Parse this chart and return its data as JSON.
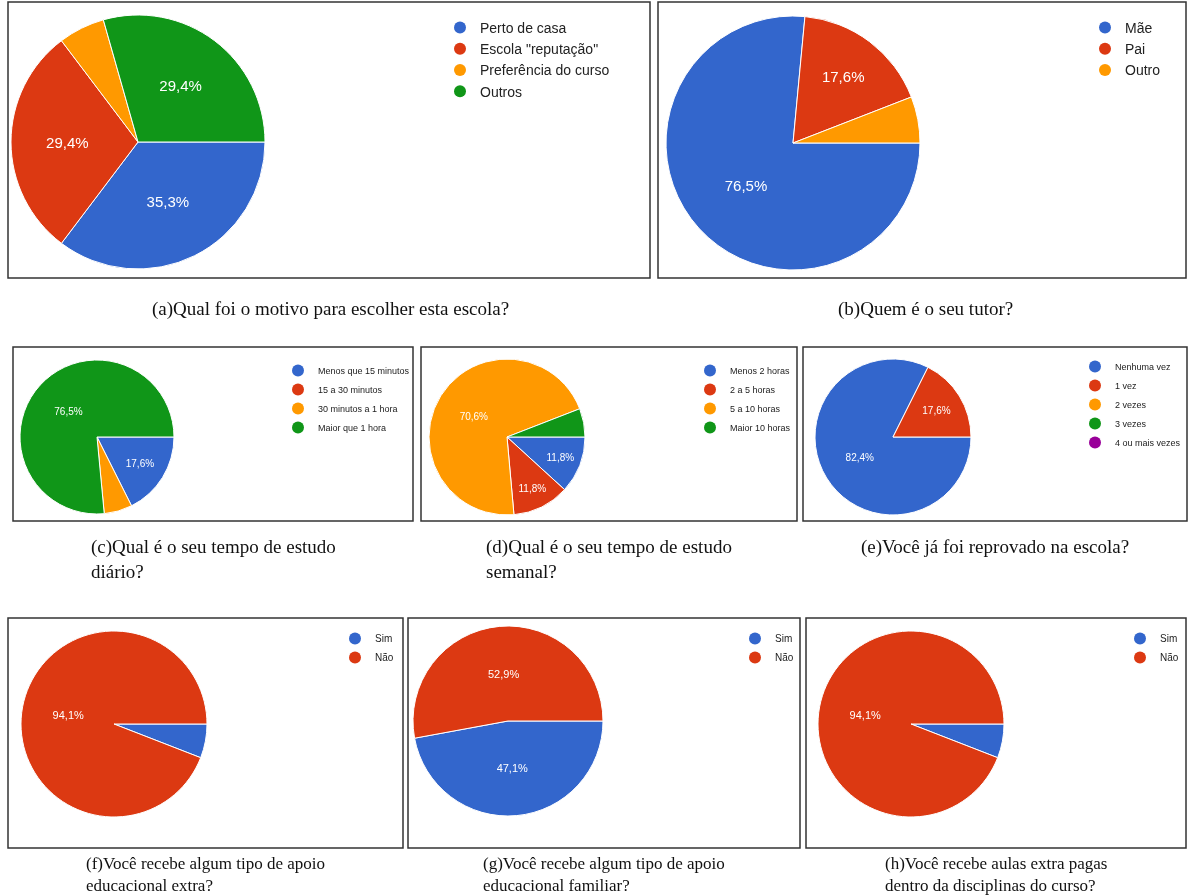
{
  "chart_data": [
    {
      "type": "pie",
      "title": "(a)Qual foi o motivo para escolher esta escola?",
      "categories": [
        "Perto de casa",
        "Escola \"reputação\"",
        "Preferência do curso",
        "Outros"
      ],
      "values": [
        35.3,
        29.4,
        5.9,
        29.4
      ],
      "colors": [
        "#3366cc",
        "#dc3912",
        "#ff9900",
        "#109618"
      ],
      "value_labels": [
        "35,3%",
        "29,4%",
        null,
        "29,4%"
      ],
      "legend": "top right"
    },
    {
      "type": "pie",
      "title": "(b)Quem é o seu tutor?",
      "categories": [
        "Mãe",
        "Pai",
        "Outro"
      ],
      "values": [
        76.5,
        17.6,
        5.9
      ],
      "colors": [
        "#3366cc",
        "#dc3912",
        "#ff9900"
      ],
      "value_labels": [
        "76,5%",
        "17,6%",
        null
      ],
      "legend": "top right"
    },
    {
      "type": "pie",
      "title": "(c)Qual é o seu tempo de estudo diário?",
      "categories": [
        "Menos que 15 minutos",
        "15 a 30 minutos",
        "30 minutos a 1 hora",
        "Maior que 1 hora"
      ],
      "values": [
        17.6,
        0,
        5.9,
        76.5
      ],
      "colors": [
        "#3366cc",
        "#dc3912",
        "#ff9900",
        "#109618"
      ],
      "value_labels": [
        "17,6%",
        null,
        null,
        "76,5%"
      ],
      "legend": "top right"
    },
    {
      "type": "pie",
      "title": "(d)Qual é o seu tempo de estudo semanal?",
      "categories": [
        "Menos 2 horas",
        "2 a 5 horas",
        "5 a 10 horas",
        "Maior 10 horas"
      ],
      "values": [
        11.8,
        11.8,
        70.6,
        5.9
      ],
      "colors": [
        "#3366cc",
        "#dc3912",
        "#ff9900",
        "#109618"
      ],
      "value_labels": [
        "11,8%",
        "11,8%",
        "70,6%",
        null
      ],
      "legend": "top right"
    },
    {
      "type": "pie",
      "title": "(e)Você já foi reprovado na escola?",
      "categories": [
        "Nenhuma vez",
        "1 vez",
        "2 vezes",
        "3 vezes",
        "4 ou mais vezes"
      ],
      "values": [
        82.4,
        17.6,
        0,
        0,
        0
      ],
      "colors": [
        "#3366cc",
        "#dc3912",
        "#ff9900",
        "#109618",
        "#990099"
      ],
      "value_labels": [
        "82,4%",
        "17,6%",
        null,
        null,
        null
      ],
      "legend": "top right"
    },
    {
      "type": "pie",
      "title": "(f)Você recebe algum tipo de apoio educacional extra?",
      "categories": [
        "Sim",
        "Não"
      ],
      "values": [
        5.9,
        94.1
      ],
      "colors": [
        "#3366cc",
        "#dc3912"
      ],
      "value_labels": [
        null,
        "94,1%"
      ],
      "legend": "top right"
    },
    {
      "type": "pie",
      "title": "(g)Você recebe algum tipo de apoio educacional familiar?",
      "categories": [
        "Sim",
        "Não"
      ],
      "values": [
        47.1,
        52.9
      ],
      "colors": [
        "#3366cc",
        "#dc3912"
      ],
      "value_labels": [
        "47,1%",
        "52,9%"
      ],
      "legend": "top right"
    },
    {
      "type": "pie",
      "title": "(h)Você recebe aulas extra pagas dentro da disciplinas do curso?",
      "categories": [
        "Sim",
        "Não"
      ],
      "values": [
        5.9,
        94.1
      ],
      "colors": [
        "#3366cc",
        "#dc3912"
      ],
      "value_labels": [
        null,
        "94,1%"
      ],
      "legend": "top right"
    }
  ]
}
